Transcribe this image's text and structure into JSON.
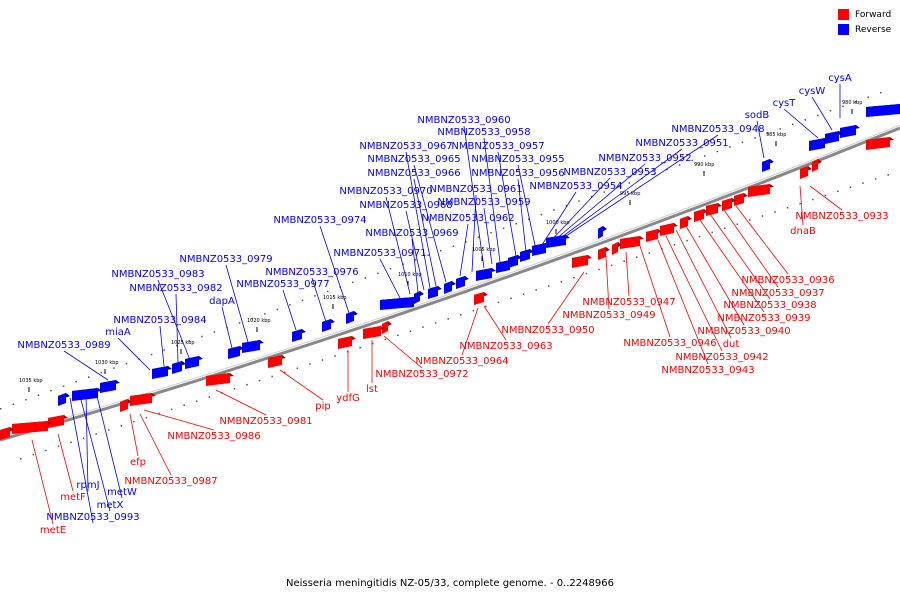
{
  "legend": {
    "forward": "Forward",
    "reverse": "Reverse"
  },
  "caption": "Neisseria meningitidis NZ-05/33, complete genome. - 0..2248966",
  "colors": {
    "forward": "#ff0000",
    "reverse": "#0000ff",
    "axis": "#888888"
  },
  "ticks": [
    "980 kbp",
    "985 kbp",
    "990 kbp",
    "995 kbp",
    "1000 kbp",
    "1005 kbp",
    "1010 kbp",
    "1015 kbp",
    "1020 kbp",
    "1025 kbp",
    "1030 kbp",
    "1035 kbp"
  ],
  "reverse_labels": [
    "cysA",
    "cysW",
    "cysT",
    "sodB",
    "NMBNZ0533_0948",
    "NMBNZ0533_0951",
    "NMBNZ0533_0952",
    "NMBNZ0533_0953",
    "NMBNZ0533_0954",
    "NMBNZ0533_0955",
    "NMBNZ0533_0956",
    "NMBNZ0533_0957",
    "NMBNZ0533_0958",
    "NMBNZ0533_0959",
    "NMBNZ0533_0960",
    "NMBNZ0533_0961",
    "NMBNZ0533_0962",
    "NMBNZ0533_0965",
    "NMBNZ0533_0966",
    "NMBNZ0533_0967",
    "NMBNZ0533_0968",
    "NMBNZ0533_0969",
    "NMBNZ0533_0970",
    "NMBNZ0533_0971",
    "NMBNZ0533_0974",
    "NMBNZ0533_0976",
    "NMBNZ0533_0977",
    "NMBNZ0533_0979",
    "dapA",
    "NMBNZ0533_0983",
    "NMBNZ0533_0982",
    "NMBNZ0533_0984",
    "miaA",
    "NMBNZ0533_0989",
    "rpmJ",
    "metW",
    "metX",
    "NMBNZ0533_0993"
  ],
  "forward_labels": [
    "NMBNZ0533_0933",
    "dnaB",
    "NMBNZ0533_0936",
    "NMBNZ0533_0937",
    "NMBNZ0533_0938",
    "NMBNZ0533_0939",
    "NMBNZ0533_0940",
    "dut",
    "NMBNZ0533_0942",
    "NMBNZ0533_0943",
    "NMBNZ0533_0946",
    "NMBNZ0533_0947",
    "NMBNZ0533_0949",
    "NMBNZ0533_0950",
    "NMBNZ0533_0963",
    "NMBNZ0533_0964",
    "NMBNZ0533_0972",
    "lst",
    "ydfG",
    "pip",
    "NMBNZ0533_0981",
    "NMBNZ0533_0986",
    "efp",
    "NMBNZ0533_0987",
    "metF",
    "metE"
  ]
}
